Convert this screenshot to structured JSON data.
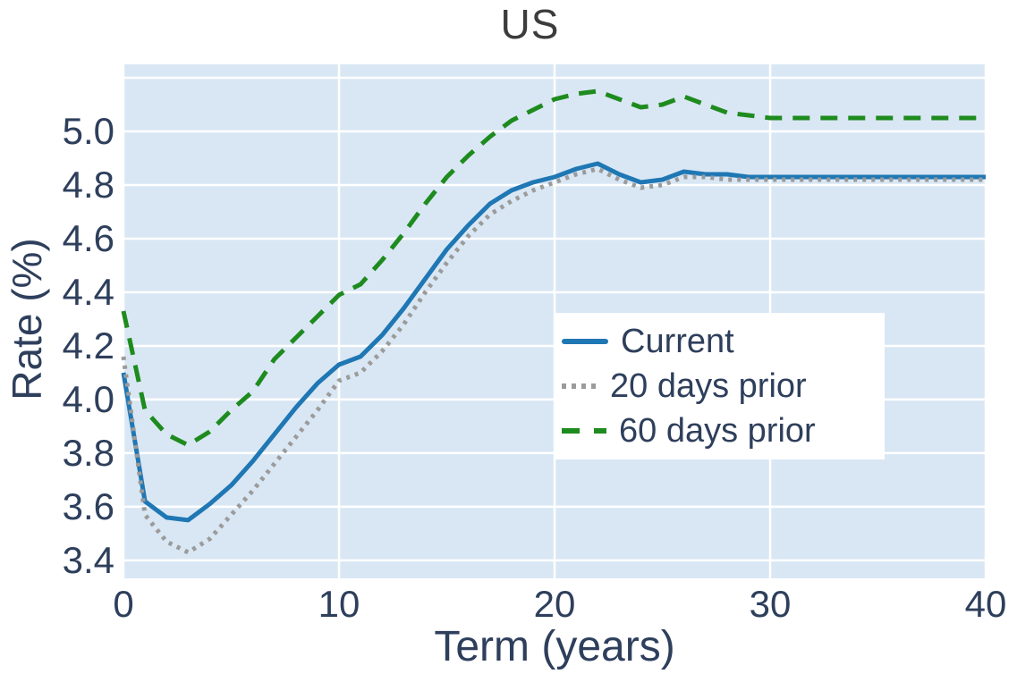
{
  "chart_data": {
    "type": "line",
    "title": "US",
    "xlabel": "Term (years)",
    "ylabel": "Rate (%)",
    "x": [
      0,
      1,
      2,
      3,
      4,
      5,
      6,
      7,
      8,
      9,
      10,
      11,
      12,
      13,
      14,
      15,
      16,
      17,
      18,
      19,
      20,
      21,
      22,
      23,
      24,
      25,
      26,
      27,
      28,
      29,
      30,
      40
    ],
    "series": [
      {
        "name": "Current",
        "line_style": "solid",
        "color": "#1f77b4",
        "values": [
          4.1,
          3.62,
          3.56,
          3.55,
          3.61,
          3.68,
          3.77,
          3.87,
          3.97,
          4.06,
          4.13,
          4.16,
          4.24,
          4.34,
          4.45,
          4.56,
          4.65,
          4.73,
          4.78,
          4.81,
          4.83,
          4.86,
          4.88,
          4.84,
          4.81,
          4.82,
          4.85,
          4.84,
          4.84,
          4.83,
          4.83,
          4.83
        ]
      },
      {
        "name": "20 days prior",
        "line_style": "dotted",
        "color": "#9b9b9b",
        "values": [
          4.16,
          3.57,
          3.47,
          3.43,
          3.48,
          3.57,
          3.66,
          3.76,
          3.86,
          3.96,
          4.07,
          4.1,
          4.18,
          4.28,
          4.4,
          4.51,
          4.61,
          4.69,
          4.74,
          4.78,
          4.81,
          4.84,
          4.86,
          4.82,
          4.79,
          4.8,
          4.83,
          4.83,
          4.82,
          4.82,
          4.82,
          4.82
        ]
      },
      {
        "name": "60 days prior",
        "line_style": "dashed",
        "color": "#1e8b1e",
        "values": [
          4.33,
          3.96,
          3.87,
          3.83,
          3.88,
          3.96,
          4.03,
          4.15,
          4.23,
          4.31,
          4.39,
          4.43,
          4.52,
          4.62,
          4.73,
          4.83,
          4.91,
          4.98,
          5.04,
          5.08,
          5.12,
          5.14,
          5.15,
          5.12,
          5.09,
          5.1,
          5.13,
          5.1,
          5.07,
          5.06,
          5.05,
          5.05
        ]
      }
    ],
    "xticks": [
      0,
      10,
      20,
      30,
      40
    ],
    "yticks": [
      3.4,
      3.6,
      3.8,
      4.0,
      4.2,
      4.4,
      4.6,
      4.8,
      5.0
    ],
    "xlim": [
      0,
      40
    ],
    "ylim": [
      3.333,
      5.25
    ],
    "grid": true,
    "grid_step_y": 0.2,
    "legend_position": "center-right",
    "plot_bg_color": "#d9e7f4",
    "grid_color": "#ffffff",
    "text_color": "#2e3f5c",
    "title_color": "#3c3c3c"
  }
}
